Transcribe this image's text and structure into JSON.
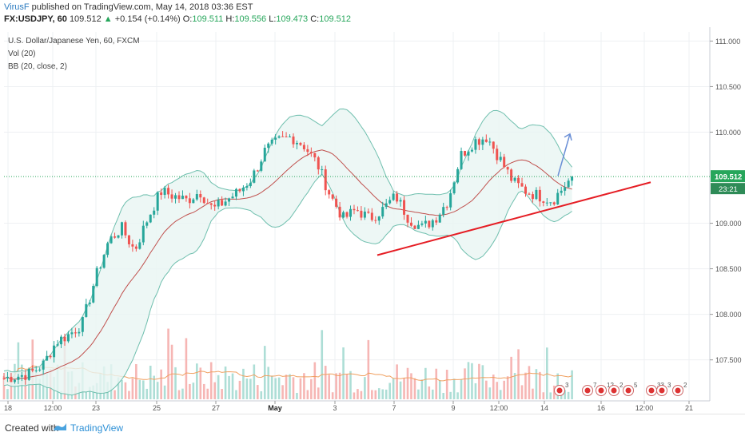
{
  "header": {
    "user": "VirusF",
    "published": "published on TradingView.com, May 14, 2018 03:36 EST",
    "symbol": "FX:USDJPY, 60",
    "last": "109.512",
    "change_arrow": "▲",
    "change": "+0.154 (+0.14%)",
    "open_label": "O:",
    "open": "109.511",
    "high_label": "H:",
    "high": "109.556",
    "low_label": "L:",
    "low": "109.473",
    "close_label": "C:",
    "close": "109.512"
  },
  "chart_data": {
    "type": "candlestick",
    "title": "U.S. Dollar/Japanese Yen, 60, FXCM",
    "indicators": [
      "Vol (20)",
      "BB (20, close, 2)"
    ],
    "y_ticks": [
      "111.000",
      "110.500",
      "110.000",
      "109.000",
      "108.500",
      "108.000",
      "107.500"
    ],
    "ylim": [
      107.05,
      111.1
    ],
    "x_ticks": [
      "18",
      "12:00",
      "23",
      "25",
      "27",
      "May",
      "3",
      "7",
      "9",
      "12:00",
      "14",
      "16",
      "12:00",
      "21"
    ],
    "last_price_label": "109.512",
    "countdown_label": "23:21",
    "price_path": [
      [
        0,
        107.3
      ],
      [
        0.02,
        107.32
      ],
      [
        0.04,
        107.35
      ],
      [
        0.06,
        107.45
      ],
      [
        0.08,
        107.7
      ],
      [
        0.1,
        107.78
      ],
      [
        0.12,
        107.9
      ],
      [
        0.14,
        108.4
      ],
      [
        0.16,
        108.8
      ],
      [
        0.18,
        108.95
      ],
      [
        0.2,
        108.7
      ],
      [
        0.22,
        109.05
      ],
      [
        0.24,
        109.35
      ],
      [
        0.26,
        109.3
      ],
      [
        0.28,
        109.25
      ],
      [
        0.3,
        109.35
      ],
      [
        0.32,
        109.15
      ],
      [
        0.34,
        109.25
      ],
      [
        0.36,
        109.35
      ],
      [
        0.38,
        109.5
      ],
      [
        0.4,
        109.8
      ],
      [
        0.42,
        109.9
      ],
      [
        0.44,
        109.95
      ],
      [
        0.46,
        109.85
      ],
      [
        0.48,
        109.65
      ],
      [
        0.5,
        109.3
      ],
      [
        0.52,
        109.05
      ],
      [
        0.54,
        109.15
      ],
      [
        0.56,
        109.05
      ],
      [
        0.58,
        109.15
      ],
      [
        0.6,
        109.3
      ],
      [
        0.62,
        109.05
      ],
      [
        0.64,
        108.95
      ],
      [
        0.66,
        109.05
      ],
      [
        0.68,
        109.25
      ],
      [
        0.7,
        109.75
      ],
      [
        0.72,
        109.9
      ],
      [
        0.74,
        109.95
      ],
      [
        0.76,
        109.7
      ],
      [
        0.78,
        109.45
      ],
      [
        0.8,
        109.35
      ],
      [
        0.82,
        109.3
      ],
      [
        0.84,
        109.25
      ],
      [
        0.86,
        109.42
      ],
      [
        0.87,
        109.512
      ]
    ],
    "trendline": [
      [
        0.62,
        108.65
      ],
      [
        1.0,
        109.45
      ]
    ],
    "projection_arrow": [
      [
        0.96,
        109.52
      ],
      [
        1.0,
        109.98
      ]
    ],
    "colors": {
      "up": "#26a69a",
      "down": "#ef5350",
      "bb_fill": "#e8f5f3",
      "bb_line": "#6fbfae",
      "basis": "#c0504d",
      "trendline": "#e51c23",
      "arrow": "#6a8fd6",
      "price_line": "#26a65b"
    }
  },
  "footer": {
    "created_with": "Created with",
    "brand": "TradingView"
  }
}
